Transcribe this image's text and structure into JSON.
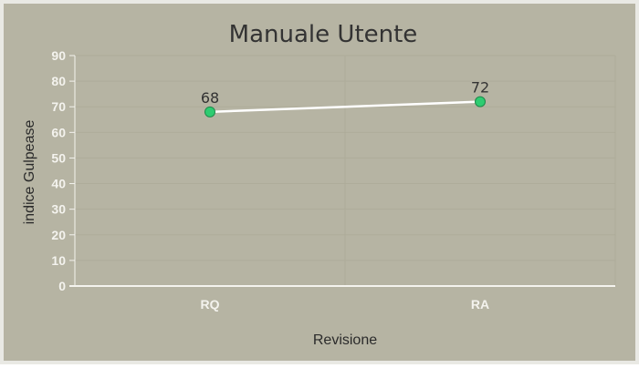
{
  "chart_data": {
    "type": "line",
    "title": "Manuale Utente",
    "xlabel": "Revisione",
    "ylabel": "indice Gulpease",
    "categories": [
      "RQ",
      "RA"
    ],
    "series": [
      {
        "values": [
          68,
          72
        ]
      }
    ],
    "ylim": [
      0,
      90
    ],
    "yticks": [
      0,
      10,
      20,
      30,
      40,
      50,
      60,
      70,
      80,
      90
    ],
    "grid": true,
    "legend": "none",
    "colors": {
      "background": "#b6b4a3",
      "line": "#ffffff",
      "marker": "#2ecc71",
      "marker_stroke": "#1e8a4a",
      "grid": "#aeac9a",
      "axis": "#f4f3ee"
    }
  }
}
